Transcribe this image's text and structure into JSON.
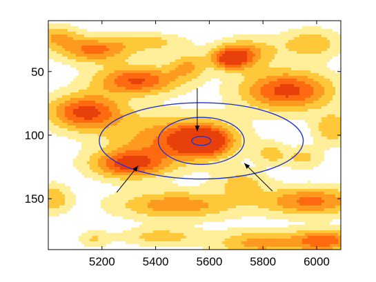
{
  "chart_data": {
    "type": "heatmap",
    "title": "",
    "xlabel": "",
    "ylabel": "",
    "xlim": [
      5000,
      6090
    ],
    "ylim": [
      190,
      10
    ],
    "y_axis_reversed": true,
    "x_ticks": [
      5200,
      5400,
      5600,
      5800,
      6000
    ],
    "y_ticks": [
      50,
      100,
      150
    ],
    "x_tick_labels": [
      "5200",
      "5400",
      "5600",
      "5800",
      "6000"
    ],
    "y_tick_labels": [
      "50",
      "100",
      "150"
    ],
    "colormap": [
      "#ffffff",
      "#ffef9a",
      "#ffc83a",
      "#ff9a20",
      "#ff6a10",
      "#e8400a"
    ],
    "colors": {
      "ellipse": "#2233cc",
      "arrow": "#000000",
      "frame": "#000000"
    },
    "heat_blobs": [
      {
        "x": 5030,
        "y": 22,
        "sx": 60,
        "sy": 6,
        "v": 0.45
      },
      {
        "x": 5170,
        "y": 33,
        "sx": 100,
        "sy": 7,
        "v": 0.7
      },
      {
        "x": 5390,
        "y": 27,
        "sx": 90,
        "sy": 5,
        "v": 0.35
      },
      {
        "x": 5330,
        "y": 57,
        "sx": 110,
        "sy": 8,
        "v": 0.85
      },
      {
        "x": 5520,
        "y": 46,
        "sx": 50,
        "sy": 7,
        "v": 0.45
      },
      {
        "x": 5140,
        "y": 82,
        "sx": 100,
        "sy": 10,
        "v": 0.9
      },
      {
        "x": 5470,
        "y": 103,
        "sx": 160,
        "sy": 13,
        "v": 0.65
      },
      {
        "x": 5575,
        "y": 105,
        "sx": 70,
        "sy": 8,
        "v": 1.0
      },
      {
        "x": 5680,
        "y": 40,
        "sx": 50,
        "sy": 6,
        "v": 0.85
      },
      {
        "x": 5740,
        "y": 35,
        "sx": 80,
        "sy": 8,
        "v": 0.5
      },
      {
        "x": 5890,
        "y": 65,
        "sx": 120,
        "sy": 11,
        "v": 0.9
      },
      {
        "x": 5980,
        "y": 28,
        "sx": 80,
        "sy": 8,
        "v": 0.45
      },
      {
        "x": 6060,
        "y": 95,
        "sx": 50,
        "sy": 9,
        "v": 0.45
      },
      {
        "x": 5830,
        "y": 115,
        "sx": 40,
        "sy": 6,
        "v": 0.35
      },
      {
        "x": 5300,
        "y": 123,
        "sx": 100,
        "sy": 8,
        "v": 0.85
      },
      {
        "x": 5020,
        "y": 150,
        "sx": 45,
        "sy": 8,
        "v": 0.45
      },
      {
        "x": 5480,
        "y": 155,
        "sx": 160,
        "sy": 8,
        "v": 0.6
      },
      {
        "x": 5720,
        "y": 137,
        "sx": 70,
        "sy": 7,
        "v": 0.35
      },
      {
        "x": 5980,
        "y": 152,
        "sx": 130,
        "sy": 8,
        "v": 0.7
      },
      {
        "x": 5420,
        "y": 180,
        "sx": 100,
        "sy": 5,
        "v": 0.4
      },
      {
        "x": 5170,
        "y": 182,
        "sx": 40,
        "sy": 5,
        "v": 0.3
      },
      {
        "x": 5790,
        "y": 185,
        "sx": 120,
        "sy": 7,
        "v": 0.55
      },
      {
        "x": 6030,
        "y": 183,
        "sx": 80,
        "sy": 6,
        "v": 0.75
      },
      {
        "x": 5950,
        "y": 118,
        "sx": 50,
        "sy": 6,
        "v": 0.35
      }
    ],
    "ellipses": [
      {
        "name": "inner",
        "cx": 5570,
        "cy": 104.5,
        "rx": 36,
        "ry": 3.5
      },
      {
        "name": "middle",
        "cx": 5570,
        "cy": 104.5,
        "rx": 160,
        "ry": 18.5
      },
      {
        "name": "outer",
        "cx": 5570,
        "cy": 104.5,
        "rx": 380,
        "ry": 30
      }
    ],
    "arrows": [
      {
        "from": [
          5555,
          63
        ],
        "to": [
          5555,
          97
        ]
      },
      {
        "from": [
          5255,
          145
        ],
        "to": [
          5335,
          124
        ]
      },
      {
        "from": [
          5835,
          144
        ],
        "to": [
          5730,
          122
        ]
      }
    ]
  }
}
